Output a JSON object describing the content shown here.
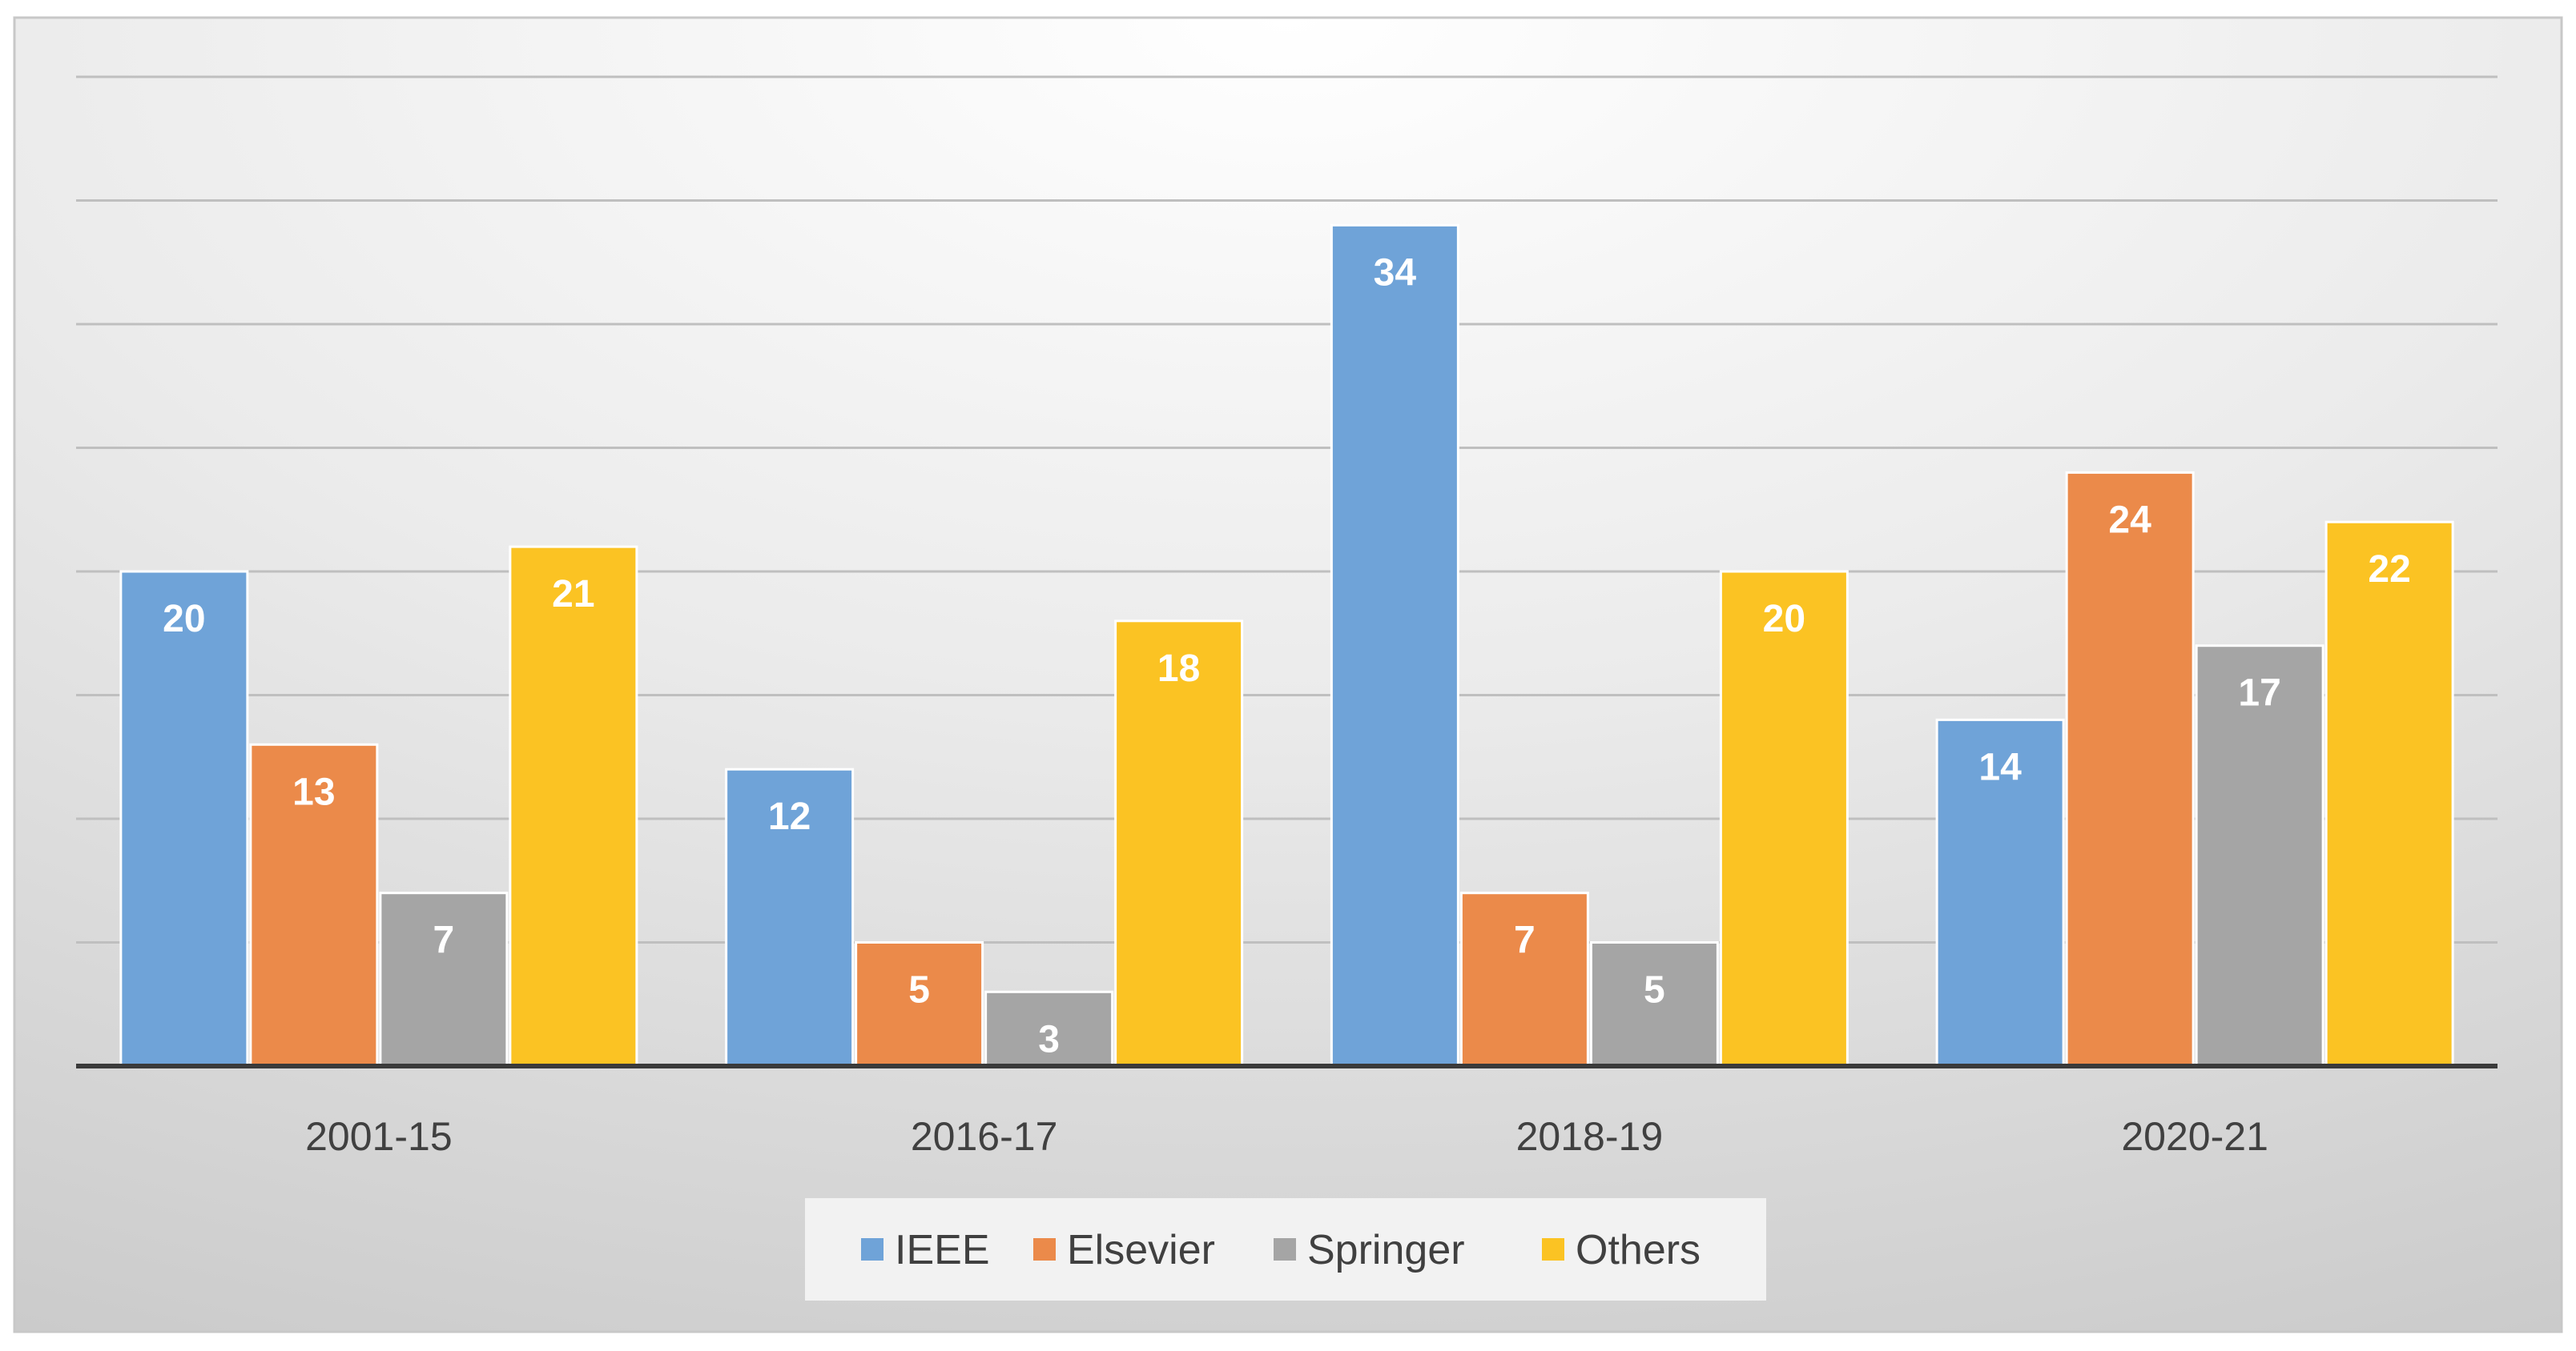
{
  "chart_data": {
    "type": "bar",
    "title": "",
    "xlabel": "",
    "ylabel": "",
    "ylim": [
      0,
      40
    ],
    "grid": true,
    "legend_position": "bottom",
    "categories": [
      "2001-15",
      "2016-17",
      "2018-19",
      "2020-21"
    ],
    "series": [
      {
        "name": "IEEE",
        "color": "#6fa3d8",
        "values": [
          20,
          12,
          34,
          14
        ]
      },
      {
        "name": "Elsevier",
        "color": "#eb8a4a",
        "values": [
          13,
          5,
          7,
          24
        ]
      },
      {
        "name": "Springer",
        "color": "#a5a5a5",
        "values": [
          7,
          3,
          5,
          17
        ]
      },
      {
        "name": "Others",
        "color": "#fbc323",
        "values": [
          21,
          18,
          20,
          22
        ]
      }
    ],
    "data_label_color": "#ffffff",
    "axis_color": "#3a3a3a",
    "grid_color": "#bfbfbf",
    "text_color": "#404040"
  }
}
